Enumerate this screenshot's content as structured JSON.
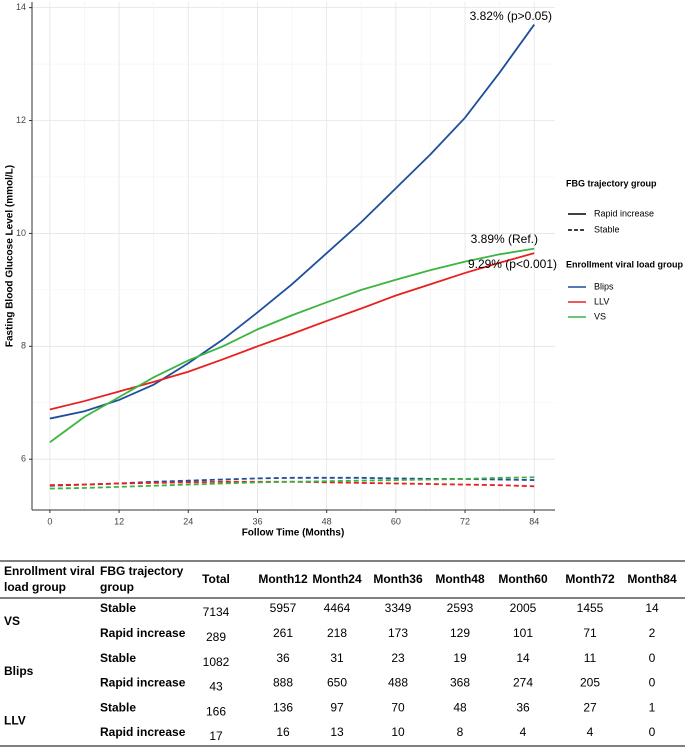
{
  "chart_data": {
    "type": "line",
    "x_label": "Follow Time (Months)",
    "y_label": "Fasting Blood Glucose Level (mmol/L)",
    "x": [
      0,
      6,
      12,
      18,
      24,
      30,
      36,
      42,
      48,
      54,
      60,
      66,
      72,
      78,
      84
    ],
    "xlim": [
      -3.1,
      87.6
    ],
    "xticks": [
      0,
      12,
      24,
      36,
      48,
      60,
      72,
      84
    ],
    "ylim": [
      5.1,
      14.1
    ],
    "yticks": [
      6,
      8,
      10,
      12,
      14
    ],
    "grid": true,
    "series": [
      {
        "color": "#1f4e9c",
        "dash": "solid",
        "values": [
          6.72,
          6.85,
          7.05,
          7.32,
          7.7,
          8.12,
          8.6,
          9.1,
          9.65,
          10.2,
          10.8,
          11.4,
          12.05,
          12.85,
          13.7
        ]
      },
      {
        "color": "#e8201f",
        "dash": "solid",
        "values": [
          6.88,
          7.03,
          7.2,
          7.37,
          7.55,
          7.77,
          8.0,
          8.22,
          8.45,
          8.67,
          8.9,
          9.1,
          9.3,
          9.48,
          9.65
        ]
      },
      {
        "color": "#3cb540",
        "dash": "solid",
        "values": [
          6.3,
          6.75,
          7.1,
          7.45,
          7.75,
          8.0,
          8.3,
          8.55,
          8.78,
          9.0,
          9.18,
          9.35,
          9.5,
          9.63,
          9.73
        ]
      },
      {
        "color": "#1f4e9c",
        "dash": "dashed",
        "values": [
          5.53,
          5.55,
          5.57,
          5.6,
          5.62,
          5.64,
          5.66,
          5.67,
          5.67,
          5.67,
          5.66,
          5.65,
          5.65,
          5.64,
          5.63
        ]
      },
      {
        "color": "#e8201f",
        "dash": "dashed",
        "values": [
          5.54,
          5.55,
          5.57,
          5.58,
          5.59,
          5.6,
          5.6,
          5.6,
          5.59,
          5.58,
          5.57,
          5.56,
          5.55,
          5.54,
          5.52
        ]
      },
      {
        "color": "#3cb540",
        "dash": "dashed",
        "values": [
          5.48,
          5.49,
          5.51,
          5.53,
          5.55,
          5.57,
          5.59,
          5.6,
          5.61,
          5.62,
          5.63,
          5.64,
          5.65,
          5.67,
          5.68
        ]
      }
    ],
    "annotations": [
      "3.82% (p>0.05)",
      "3.89% (Ref.)",
      "9.29% (p<0.001)"
    ],
    "legends": [
      {
        "title": "FBG trajectory group",
        "entries": [
          {
            "label": "Rapid increase",
            "dash": "solid"
          },
          {
            "label": "Stable",
            "dash": "dashed"
          }
        ]
      },
      {
        "title": "Enrollment viral load group",
        "entries": [
          {
            "label": "Blips",
            "color": "#1f4e9c"
          },
          {
            "label": "LLV",
            "color": "#e8201f"
          },
          {
            "label": "VS",
            "color": "#3cb540"
          }
        ]
      }
    ]
  },
  "table": {
    "header": [
      "Enrollment viral load group",
      "FBG trajectory group",
      "Total",
      "Month12",
      "Month24",
      "Month36",
      "Month48",
      "Month60",
      "Month72",
      "Month84"
    ],
    "groups": [
      {
        "label": "VS",
        "rows": [
          [
            "Stable",
            7134,
            5957,
            4464,
            3349,
            2593,
            2005,
            1455,
            14
          ],
          [
            "Rapid increase",
            289,
            261,
            218,
            173,
            129,
            101,
            71,
            2
          ]
        ]
      },
      {
        "label": "Blips",
        "rows": [
          [
            "Stable",
            1082,
            36,
            31,
            23,
            19,
            14,
            11,
            0
          ],
          [
            "Rapid increase",
            43,
            888,
            650,
            488,
            368,
            274,
            205,
            0
          ]
        ]
      },
      {
        "label": "LLV",
        "rows": [
          [
            "Stable",
            166,
            136,
            97,
            70,
            48,
            36,
            27,
            1
          ],
          [
            "Rapid increase",
            17,
            16,
            13,
            10,
            8,
            4,
            4,
            0
          ]
        ]
      }
    ]
  }
}
